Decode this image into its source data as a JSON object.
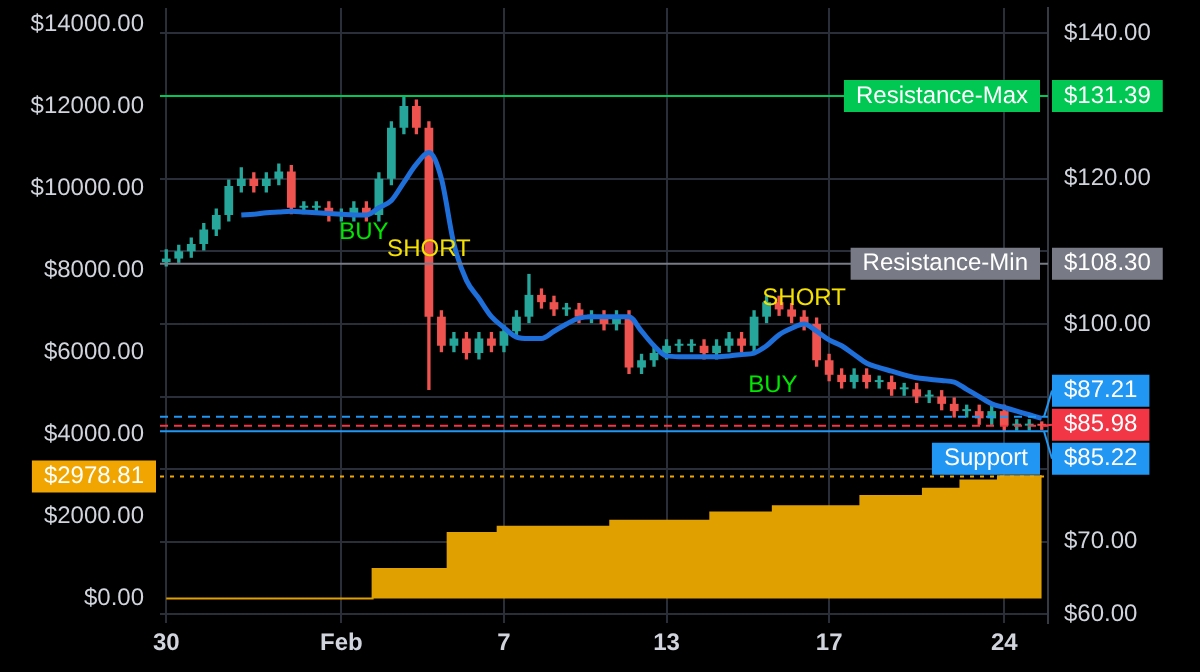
{
  "chart_data": {
    "type": "candlestick",
    "categories": [
      "30",
      null,
      null,
      null,
      null,
      null,
      null,
      null,
      null,
      null,
      null,
      null,
      null,
      null,
      "Feb",
      null,
      null,
      null,
      null,
      null,
      null,
      null,
      null,
      null,
      null,
      null,
      null,
      "7",
      null,
      null,
      null,
      null,
      null,
      null,
      null,
      null,
      null,
      null,
      null,
      null,
      "13",
      null,
      null,
      null,
      null,
      null,
      null,
      null,
      null,
      null,
      null,
      null,
      null,
      "17",
      null,
      null,
      null,
      null,
      null,
      null,
      null,
      null,
      null,
      null,
      null,
      null,
      null,
      "24",
      null,
      null,
      null
    ],
    "ylim": [
      -600,
      14400
    ],
    "yticks": [
      {
        "value": 0,
        "label": "$0.00"
      },
      {
        "value": 2000,
        "label": "$2000.00"
      },
      {
        "value": 2978.81,
        "label": "$2978.81"
      },
      {
        "value": 4000,
        "label": "$4000.00"
      },
      {
        "value": 6000,
        "label": "$6000.00"
      },
      {
        "value": 8000,
        "label": "$8000.00"
      },
      {
        "value": 10000,
        "label": "$10000.00"
      },
      {
        "value": 12000,
        "label": "$12000.00"
      },
      {
        "value": 14000,
        "label": "$14000.00"
      }
    ],
    "y2lim": [
      58.8,
      143.5
    ],
    "y2ticks": [
      {
        "value": 60,
        "label": "$60.00"
      },
      {
        "value": 70,
        "label": "$70.00"
      },
      {
        "value": 80,
        "label": null
      },
      {
        "value": 90,
        "label": null
      },
      {
        "value": 100,
        "label": "$100.00"
      },
      {
        "value": 108.3,
        "label": "$108.30"
      },
      {
        "value": 110,
        "label": null
      },
      {
        "value": 120,
        "label": "$120.00"
      },
      {
        "value": 131.39,
        "label": "$131.39"
      },
      {
        "value": 140,
        "label": "$140.00"
      }
    ],
    "grid": true,
    "series": [
      {
        "type": "area",
        "axis": "y",
        "color": "#e0a000",
        "values": [
          0,
          0,
          0,
          0,
          0,
          0,
          0,
          0,
          0,
          0,
          0,
          0,
          0,
          0,
          0,
          0,
          0,
          720,
          720,
          720,
          720,
          720,
          720,
          1600,
          1600,
          1600,
          1600,
          1750,
          1750,
          1750,
          1750,
          1750,
          1750,
          1750,
          1750,
          1750,
          1900,
          1900,
          1900,
          1900,
          1900,
          1900,
          1900,
          1900,
          2100,
          2100,
          2100,
          2100,
          2100,
          2250,
          2250,
          2250,
          2250,
          2250,
          2250,
          2250,
          2500,
          2500,
          2500,
          2500,
          2500,
          2680,
          2680,
          2680,
          2880,
          2880,
          2880,
          2980,
          2980,
          2980,
          2980
        ]
      },
      {
        "axis": "y2",
        "ohlc": [
          [
            108.5,
            110.2,
            108,
            109
          ],
          [
            109,
            110.8,
            108.5,
            110
          ],
          [
            110,
            111.8,
            109.2,
            111
          ],
          [
            111,
            113.8,
            110.2,
            113
          ],
          [
            113,
            115.8,
            112.2,
            115
          ],
          [
            115,
            119.8,
            114.2,
            119
          ],
          [
            119,
            121.5,
            118.2,
            120
          ],
          [
            120,
            120.8,
            118.2,
            119
          ],
          [
            119,
            120.8,
            118.2,
            120
          ],
          [
            120,
            122,
            119.2,
            121
          ],
          [
            121,
            121.8,
            115.2,
            116
          ],
          [
            116,
            116.8,
            115.2,
            116
          ],
          [
            116,
            116.8,
            115.2,
            116
          ],
          [
            116,
            116.8,
            114.2,
            115
          ],
          [
            115,
            115.8,
            114.2,
            115
          ],
          [
            115,
            116.8,
            114.2,
            116
          ],
          [
            116,
            116.8,
            114.2,
            115
          ],
          [
            115,
            120.8,
            114.2,
            120
          ],
          [
            120,
            127.8,
            119.2,
            127
          ],
          [
            127,
            131.39,
            126.2,
            130
          ],
          [
            130,
            130.8,
            126.2,
            127
          ],
          [
            127,
            127.8,
            91,
            101
          ],
          [
            101,
            101.8,
            96.2,
            97
          ],
          [
            97,
            98.8,
            96.2,
            98
          ],
          [
            98,
            98.8,
            95.2,
            96
          ],
          [
            96,
            98.8,
            95.2,
            98
          ],
          [
            98,
            98.8,
            96.2,
            97
          ],
          [
            97,
            99.8,
            96.2,
            99
          ],
          [
            99,
            101.8,
            98.2,
            101
          ],
          [
            101,
            106.8,
            100.2,
            104
          ],
          [
            104,
            104.8,
            102.2,
            103
          ],
          [
            103,
            103.8,
            101.2,
            102
          ],
          [
            102,
            102.8,
            101.2,
            102
          ],
          [
            102,
            102.8,
            100.2,
            101
          ],
          [
            101,
            101.8,
            100.2,
            101
          ],
          [
            101,
            101.8,
            99.2,
            100
          ],
          [
            100,
            101.8,
            99.2,
            101
          ],
          [
            101,
            101.8,
            93.2,
            94
          ],
          [
            94,
            95.8,
            93.2,
            95
          ],
          [
            95,
            96.8,
            94.2,
            96
          ],
          [
            96,
            97.8,
            95.2,
            97
          ],
          [
            97,
            97.8,
            96.2,
            97
          ],
          [
            97,
            97.8,
            96.2,
            97
          ],
          [
            97,
            97.8,
            95.2,
            96
          ],
          [
            96,
            97.8,
            95.2,
            97
          ],
          [
            97,
            98.8,
            96.2,
            98
          ],
          [
            98,
            98.8,
            96.2,
            97
          ],
          [
            97,
            101.8,
            96.2,
            101
          ],
          [
            101,
            103.8,
            100.2,
            103
          ],
          [
            103,
            103.8,
            101.2,
            102
          ],
          [
            102,
            102.8,
            100.2,
            101
          ],
          [
            101,
            101.8,
            99.2,
            100
          ],
          [
            100,
            100.8,
            94.2,
            95
          ],
          [
            95,
            95.8,
            92.2,
            93
          ],
          [
            93,
            93.8,
            91.2,
            92
          ],
          [
            92,
            93.8,
            91.2,
            93
          ],
          [
            93,
            93.8,
            91.2,
            92
          ],
          [
            92,
            92.8,
            91.2,
            92
          ],
          [
            92,
            92.8,
            90.2,
            91
          ],
          [
            91,
            91.8,
            90.2,
            91
          ],
          [
            91,
            91.8,
            89.2,
            90
          ],
          [
            90,
            90.8,
            89.2,
            90
          ],
          [
            90,
            90.8,
            88.2,
            89
          ],
          [
            89,
            89.8,
            87.2,
            88
          ],
          [
            88,
            88.8,
            87.2,
            88
          ],
          [
            88,
            88.8,
            86.2,
            87
          ],
          [
            87,
            88.8,
            86.2,
            88
          ],
          [
            88,
            88.8,
            85.22,
            86
          ],
          [
            86,
            86.8,
            85.4,
            86
          ],
          [
            86,
            86.8,
            85.4,
            86
          ],
          [
            86,
            86.5,
            85.5,
            85.98
          ]
        ],
        "colors": [
          "#26a69a",
          "#26a69a",
          "#26a69a",
          "#26a69a",
          "#26a69a",
          "#26a69a",
          "#26a69a",
          "#ef5350",
          "#26a69a",
          "#26a69a",
          "#ef5350",
          "#26a69a",
          "#26a69a",
          "#ef5350",
          "#26a69a",
          "#26a69a",
          "#ef5350",
          "#26a69a",
          "#26a69a",
          "#26a69a",
          "#ef5350",
          "#ef5350",
          "#ef5350",
          "#26a69a",
          "#ef5350",
          "#26a69a",
          "#ef5350",
          "#26a69a",
          "#26a69a",
          "#26a69a",
          "#ef5350",
          "#ef5350",
          "#26a69a",
          "#ef5350",
          "#26a69a",
          "#ef5350",
          "#26a69a",
          "#ef5350",
          "#26a69a",
          "#26a69a",
          "#26a69a",
          "#26a69a",
          "#26a69a",
          "#ef5350",
          "#26a69a",
          "#26a69a",
          "#ef5350",
          "#26a69a",
          "#26a69a",
          "#ef5350",
          "#ef5350",
          "#ef5350",
          "#ef5350",
          "#ef5350",
          "#ef5350",
          "#26a69a",
          "#ef5350",
          "#26a69a",
          "#ef5350",
          "#26a69a",
          "#ef5350",
          "#26a69a",
          "#ef5350",
          "#ef5350",
          "#26a69a",
          "#ef5350",
          "#26a69a",
          "#ef5350",
          "#26a69a",
          "#26a69a",
          "#ef5350"
        ]
      },
      {
        "type": "line",
        "axis": "y2",
        "color": "#1e6fd9",
        "marker": "none",
        "values": [
          null,
          null,
          null,
          null,
          null,
          null,
          115,
          115.1,
          115.3,
          115.4,
          115.5,
          115.4,
          115.3,
          115.2,
          115.1,
          115,
          115,
          116,
          117,
          119.5,
          122,
          123.6,
          120,
          111,
          106,
          103.5,
          101,
          99.5,
          98.2,
          98,
          98,
          99,
          100,
          100.8,
          101,
          101,
          101,
          101,
          99,
          97,
          95.6,
          95.5,
          95.5,
          95.5,
          95.5,
          95.6,
          95.8,
          96,
          97,
          98.5,
          99.4,
          100,
          99,
          97.8,
          97,
          95.8,
          94.6,
          94,
          93.5,
          93,
          92.6,
          92.4,
          92.2,
          92,
          91,
          90,
          89,
          88.5,
          88,
          87.5,
          87
        ]
      }
    ],
    "ref_lines": [
      {
        "axis": "y2",
        "value": 131.39,
        "label": "Resistance-Max",
        "color": "#00c853",
        "line_style": "solid"
      },
      {
        "axis": "y2",
        "value": 108.3,
        "label": "Resistance-Min",
        "color": "#787b86",
        "line_style": "solid"
      },
      {
        "axis": "y2",
        "value": 87.21,
        "label": null,
        "color": "#2196f3",
        "line_style": "dashed"
      },
      {
        "axis": "y2",
        "value": 85.98,
        "label": null,
        "color": "#f23645",
        "line_style": "dashed"
      },
      {
        "axis": "y2",
        "value": 85.22,
        "label": "Support",
        "color": "#2196f3",
        "line_style": "solid"
      },
      {
        "axis": "y",
        "value": 2978.81,
        "label": null,
        "color": "#f0a500",
        "line_style": "dotted"
      }
    ],
    "annotations": [
      "BUY",
      "SHORT",
      "BUY",
      "SHORT",
      "$87.21",
      "$85.98",
      "$85.22"
    ]
  }
}
